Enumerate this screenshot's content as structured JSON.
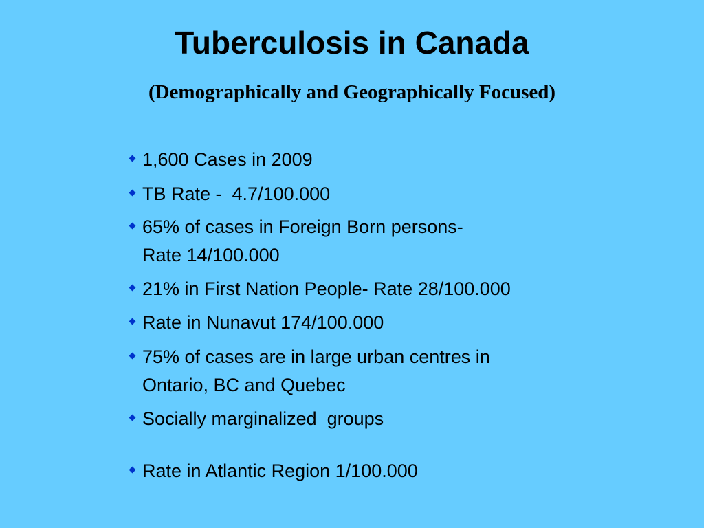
{
  "header": {
    "title": "Tuberculosis in Canada",
    "subtitle": "(Demographically and Geographically Focused)"
  },
  "bullets": [
    {
      "lines": [
        "1,600 Cases in 2009"
      ]
    },
    {
      "lines": [
        "TB Rate -  4.7/100.000"
      ]
    },
    {
      "lines": [
        "65% of cases in Foreign Born persons-",
        "Rate 14/100.000"
      ]
    },
    {
      "lines": [
        "21% in First Nation People- Rate 28/100.000"
      ]
    },
    {
      "lines": [
        "Rate in Nunavut 174/100.000"
      ]
    },
    {
      "lines": [
        "75% of cases are in large urban centres in",
        "Ontario, BC and Quebec"
      ]
    },
    {
      "lines": [
        "Socially marginalized  groups"
      ]
    },
    {
      "lines": [
        "Rate in Atlantic Region 1/100.000"
      ]
    }
  ]
}
